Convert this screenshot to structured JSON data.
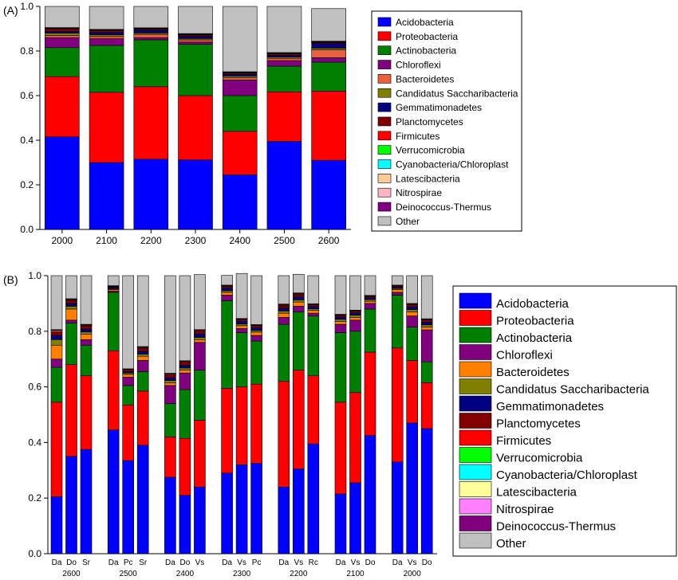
{
  "taxa": [
    {
      "name": "Acidobacteria",
      "color": "#0000ff"
    },
    {
      "name": "Proteobacteria",
      "color": "#ff0000"
    },
    {
      "name": "Actinobacteria",
      "color": "#008000"
    },
    {
      "name": "Chloroflexi",
      "color": "#800080"
    },
    {
      "name": "Bacteroidetes",
      "color": "#ff8000"
    },
    {
      "name": "Candidatus Saccharibacteria",
      "color": "#808000"
    },
    {
      "name": "Gemmatimonadetes",
      "color": "#000080"
    },
    {
      "name": "Planctomycetes",
      "color": "#800000"
    },
    {
      "name": "Firmicutes",
      "color": "#ff0000"
    },
    {
      "name": "Verrucomicrobia",
      "color": "#00ff00"
    },
    {
      "name": "Cyanobacteria/Chloroplast",
      "color": "#00ffff"
    },
    {
      "name": "Latescibacteria",
      "color": "#ffff99"
    },
    {
      "name": "Nitrospirae",
      "color": "#ff80ff"
    },
    {
      "name": "Deinococcus-Thermus",
      "color": "#800080"
    },
    {
      "name": "Other",
      "color": "#c0c0c0"
    }
  ],
  "chart_data": [
    {
      "type": "bar",
      "stacked": true,
      "panel_label": "(A)",
      "ylim": [
        0,
        1.0
      ],
      "yticks": [
        "0.0",
        "0.2",
        "0.4",
        "0.6",
        "0.8",
        "1.0"
      ],
      "categories": [
        "2000",
        "2100",
        "2200",
        "2300",
        "2400",
        "2500",
        "2600"
      ],
      "legend_colors": [
        "#0000ff",
        "#ff0000",
        "#008000",
        "#800080",
        "#e8603c",
        "#808000",
        "#000080",
        "#800000",
        "#ff0000",
        "#00ff00",
        "#00ffff",
        "#ffcc99",
        "#ffb6c1",
        "#800080",
        "#c0c0c0"
      ],
      "series": [
        {
          "name": "Acidobacteria",
          "values": [
            0.415,
            0.3,
            0.315,
            0.312,
            0.245,
            0.395,
            0.31
          ]
        },
        {
          "name": "Proteobacteria",
          "values": [
            0.27,
            0.315,
            0.325,
            0.288,
            0.195,
            0.222,
            0.31
          ]
        },
        {
          "name": "Actinobacteria",
          "values": [
            0.13,
            0.21,
            0.21,
            0.23,
            0.16,
            0.115,
            0.13
          ]
        },
        {
          "name": "Chloroflexi",
          "values": [
            0.045,
            0.03,
            0.01,
            0.01,
            0.07,
            0.025,
            0.02
          ]
        },
        {
          "name": "Bacteroidetes",
          "values": [
            0.01,
            0.01,
            0.015,
            0.01,
            0.01,
            0.01,
            0.035
          ]
        },
        {
          "name": "Candidatus Saccharibacteria",
          "values": [
            0.01,
            0.008,
            0.006,
            0.006,
            0.008,
            0.006,
            0.008
          ]
        },
        {
          "name": "Gemmatimonadetes",
          "values": [
            0.008,
            0.01,
            0.012,
            0.01,
            0.008,
            0.008,
            0.02
          ]
        },
        {
          "name": "Planctomycetes",
          "values": [
            0.01,
            0.008,
            0.005,
            0.006,
            0.005,
            0.006,
            0.005
          ]
        },
        {
          "name": "Firmicutes",
          "values": [
            0.003,
            0.002,
            0.002,
            0.002,
            0.002,
            0.002,
            0.002
          ]
        },
        {
          "name": "Verrucomicrobia",
          "values": [
            0,
            0,
            0,
            0,
            0,
            0,
            0
          ]
        },
        {
          "name": "Cyanobacteria/Chloroplast",
          "values": [
            0,
            0,
            0,
            0,
            0,
            0,
            0
          ]
        },
        {
          "name": "Latescibacteria",
          "values": [
            0.002,
            0.002,
            0.002,
            0.002,
            0.002,
            0.002,
            0.002
          ]
        },
        {
          "name": "Nitrospirae",
          "values": [
            0,
            0,
            0,
            0,
            0,
            0,
            0
          ]
        },
        {
          "name": "Deinococcus-Thermus",
          "values": [
            0.002,
            0.002,
            0.002,
            0.002,
            0.002,
            0.002,
            0.002
          ]
        },
        {
          "name": "Other",
          "values": [
            0.095,
            0.103,
            0.096,
            0.122,
            0.293,
            0.207,
            0.146
          ]
        }
      ]
    },
    {
      "type": "bar",
      "stacked": true,
      "panel_label": "(B)",
      "ylim": [
        0,
        1.0
      ],
      "yticks": [
        "0.0",
        "0.2",
        "0.4",
        "0.6",
        "0.8",
        "1.0"
      ],
      "legend_colors": [
        "#0000ff",
        "#ff0000",
        "#008000",
        "#800080",
        "#ff8000",
        "#808000",
        "#000080",
        "#800000",
        "#ff0000",
        "#00ff00",
        "#00ffff",
        "#ffff99",
        "#ff80ff",
        "#800080",
        "#c0c0c0"
      ],
      "groups": [
        {
          "label": "2600",
          "bars": [
            {
              "label": "Da",
              "values": [
                0.205,
                0.34,
                0.125,
                0.03,
                0.05,
                0.02,
                0.015,
                0.01,
                0.005,
                0,
                0,
                0.003,
                0,
                0.003,
                0.194
              ]
            },
            {
              "label": "Do",
              "values": [
                0.35,
                0.33,
                0.15,
                0.01,
                0.04,
                0.01,
                0.01,
                0.01,
                0.003,
                0,
                0,
                0.002,
                0,
                0.002,
                0.083
              ]
            },
            {
              "label": "Sr",
              "values": [
                0.375,
                0.265,
                0.11,
                0.02,
                0.02,
                0.008,
                0.01,
                0.01,
                0.003,
                0,
                0,
                0.002,
                0,
                0.002,
                0.175
              ]
            }
          ]
        },
        {
          "label": "2500",
          "bars": [
            {
              "label": "Da",
              "values": [
                0.445,
                0.285,
                0.21,
                0.005,
                0.005,
                0.003,
                0.004,
                0.003,
                0.002,
                0,
                0,
                0.001,
                0,
                0.001,
                0.036
              ]
            },
            {
              "label": "Pc",
              "values": [
                0.335,
                0.2,
                0.07,
                0.03,
                0.01,
                0.005,
                0.005,
                0.005,
                0.003,
                0,
                0,
                0.001,
                0,
                0.001,
                0.335
              ]
            },
            {
              "label": "Sr",
              "values": [
                0.39,
                0.195,
                0.07,
                0.04,
                0.015,
                0.008,
                0.01,
                0.01,
                0.003,
                0,
                0,
                0.002,
                0,
                0.002,
                0.255
              ]
            }
          ]
        },
        {
          "label": "2400",
          "bars": [
            {
              "label": "Da",
              "values": [
                0.275,
                0.145,
                0.12,
                0.065,
                0.01,
                0.008,
                0.01,
                0.008,
                0.004,
                0,
                0,
                0.002,
                0,
                0.002,
                0.351
              ]
            },
            {
              "label": "Do",
              "values": [
                0.21,
                0.205,
                0.175,
                0.06,
                0.01,
                0.008,
                0.01,
                0.008,
                0.004,
                0,
                0,
                0.002,
                0,
                0.002,
                0.306
              ]
            },
            {
              "label": "Vs",
              "values": [
                0.24,
                0.24,
                0.18,
                0.1,
                0.01,
                0.008,
                0.012,
                0.008,
                0.004,
                0,
                0,
                0.002,
                0,
                0.002,
                0.198
              ]
            }
          ]
        },
        {
          "label": "2300",
          "bars": [
            {
              "label": "Da",
              "values": [
                0.29,
                0.305,
                0.315,
                0.02,
                0.01,
                0.006,
                0.01,
                0.006,
                0.002,
                0,
                0,
                0.001,
                0,
                0.001,
                0.035
              ]
            },
            {
              "label": "Vs",
              "values": [
                0.32,
                0.28,
                0.195,
                0.015,
                0.01,
                0.006,
                0.01,
                0.006,
                0.002,
                0,
                0,
                0.001,
                0,
                0.001,
                0.162
              ]
            },
            {
              "label": "Pc",
              "values": [
                0.325,
                0.285,
                0.155,
                0.02,
                0.012,
                0.006,
                0.01,
                0.007,
                0.002,
                0,
                0,
                0.001,
                0,
                0.001,
                0.176
              ]
            }
          ]
        },
        {
          "label": "2200",
          "bars": [
            {
              "label": "Da",
              "values": [
                0.24,
                0.38,
                0.205,
                0.025,
                0.015,
                0.008,
                0.01,
                0.008,
                0.003,
                0,
                0,
                0.002,
                0,
                0.002,
                0.102
              ]
            },
            {
              "label": "Vs",
              "values": [
                0.305,
                0.355,
                0.21,
                0.02,
                0.015,
                0.008,
                0.01,
                0.008,
                0.003,
                0,
                0,
                0.002,
                0,
                0.002,
                0.067
              ]
            },
            {
              "label": "Rc",
              "values": [
                0.395,
                0.245,
                0.215,
                0.01,
                0.01,
                0.006,
                0.008,
                0.006,
                0.002,
                0,
                0,
                0.001,
                0,
                0.001,
                0.101
              ]
            }
          ]
        },
        {
          "label": "2100",
          "bars": [
            {
              "label": "Da",
              "values": [
                0.215,
                0.33,
                0.25,
                0.03,
                0.01,
                0.008,
                0.008,
                0.006,
                0.002,
                0,
                0,
                0.001,
                0,
                0.001,
                0.139
              ]
            },
            {
              "label": "Vs",
              "values": [
                0.255,
                0.325,
                0.22,
                0.04,
                0.01,
                0.008,
                0.008,
                0.006,
                0.002,
                0,
                0,
                0.001,
                0,
                0.001,
                0.124
              ]
            },
            {
              "label": "Do",
              "values": [
                0.425,
                0.3,
                0.155,
                0.02,
                0.008,
                0.006,
                0.006,
                0.005,
                0.002,
                0,
                0,
                0.001,
                0,
                0.001,
                0.071
              ]
            }
          ]
        },
        {
          "label": "2000",
          "bars": [
            {
              "label": "Da",
              "values": [
                0.33,
                0.41,
                0.19,
                0.01,
                0.01,
                0.004,
                0.004,
                0.004,
                0.002,
                0,
                0,
                0.001,
                0,
                0.001,
                0.034
              ]
            },
            {
              "label": "Vs",
              "values": [
                0.47,
                0.225,
                0.12,
                0.04,
                0.015,
                0.008,
                0.01,
                0.008,
                0.002,
                0,
                0,
                0.001,
                0,
                0.001,
                0.1
              ]
            },
            {
              "label": "Do",
              "values": [
                0.45,
                0.165,
                0.075,
                0.115,
                0.01,
                0.008,
                0.01,
                0.008,
                0.002,
                0,
                0,
                0.001,
                0,
                0.001,
                0.155
              ]
            }
          ]
        }
      ]
    }
  ]
}
